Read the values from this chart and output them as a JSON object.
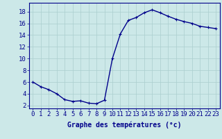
{
  "x": [
    0,
    1,
    2,
    3,
    4,
    5,
    6,
    7,
    8,
    9,
    10,
    11,
    12,
    13,
    14,
    15,
    16,
    17,
    18,
    19,
    20,
    21,
    22,
    23
  ],
  "y": [
    6.0,
    5.2,
    4.7,
    4.0,
    3.0,
    2.7,
    2.8,
    2.4,
    2.3,
    2.9,
    10.0,
    14.2,
    16.5,
    17.0,
    17.8,
    18.3,
    17.8,
    17.2,
    16.7,
    16.3,
    16.0,
    15.5,
    15.3,
    15.1
  ],
  "line_color": "#00008B",
  "marker": "+",
  "marker_size": 3,
  "bg_color": "#cce8e8",
  "grid_color": "#aacece",
  "xlabel": "Graphe des températures (°c)",
  "xlabel_fontsize": 7,
  "ylabel_ticks": [
    2,
    4,
    6,
    8,
    10,
    12,
    14,
    16,
    18
  ],
  "xlim": [
    -0.5,
    23.5
  ],
  "ylim": [
    1.5,
    19.5
  ],
  "tick_fontsize": 6.5,
  "tick_color": "#00008B",
  "axis_color": "#00008B",
  "line_width": 1.0,
  "marker_edge_width": 0.8
}
